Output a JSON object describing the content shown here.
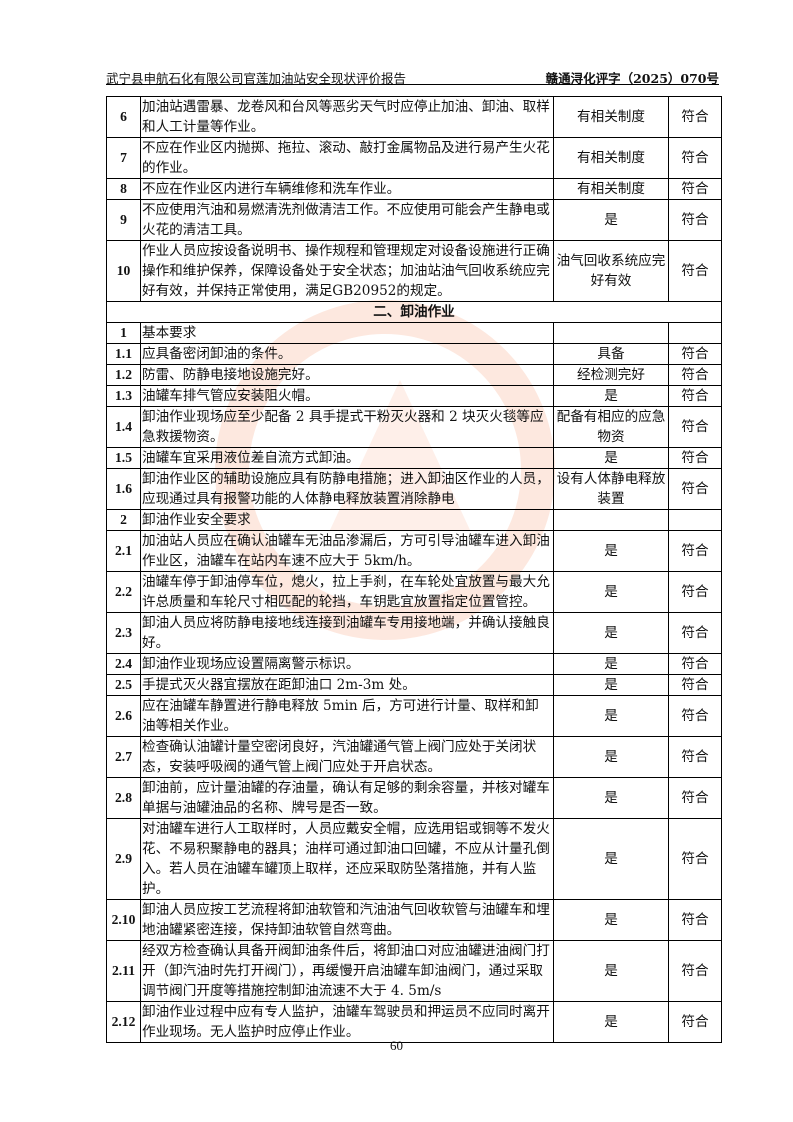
{
  "header": {
    "title": "武宁县申航石化有限公司官莲加油站安全现状评价报告",
    "doc_no": "赣通浔化评字（2025）070号"
  },
  "rows": [
    {
      "no": "6",
      "content": "加油站遇雷暴、龙卷风和台风等恶劣天气时应停止加油、卸油、取样和人工计量等作业。",
      "status": "有相关制度",
      "result": "符合"
    },
    {
      "no": "7",
      "content": "不应在作业区内抛掷、拖拉、滚动、敲打金属物品及进行易产生火花的作业。",
      "status": "有相关制度",
      "result": "符合"
    },
    {
      "no": "8",
      "content": "不应在作业区内进行车辆维修和洗车作业。",
      "status": "有相关制度",
      "result": "符合"
    },
    {
      "no": "9",
      "content": "不应使用汽油和易燃清洗剂做清洁工作。不应使用可能会产生静电或火花的清洁工具。",
      "status": "是",
      "result": "符合"
    },
    {
      "no": "10",
      "content": "作业人员应按设备说明书、操作规程和管理规定对设备设施进行正确操作和维护保养，保障设备处于安全状态；加油站油气回收系统应完好有效，并保持正常使用，满足GB20952的规定。",
      "status": "油气回收系统应完好有效",
      "result": "符合"
    }
  ],
  "section_title": "二、卸油作业",
  "rows2": [
    {
      "no": "1",
      "content": "基本要求",
      "status": "",
      "result": ""
    },
    {
      "no": "1.1",
      "content": "应具备密闭卸油的条件。",
      "status": "具备",
      "result": "符合"
    },
    {
      "no": "1.2",
      "content": "防雷、防静电接地设施完好。",
      "status": "经检测完好",
      "result": "符合"
    },
    {
      "no": "1.3",
      "content": "油罐车排气管应安装阻火帽。",
      "status": "是",
      "result": "符合"
    },
    {
      "no": "1.4",
      "content": "卸油作业现场应至少配备 2 具手提式干粉灭火器和 2 块灭火毯等应急救援物资。",
      "status": "配备有相应的应急物资",
      "result": "符合"
    },
    {
      "no": "1.5",
      "content": "油罐车宜采用液位差自流方式卸油。",
      "status": "是",
      "result": "符合"
    },
    {
      "no": "1.6",
      "content": "卸油作业区的辅助设施应具有防静电措施；进入卸油区作业的人员，应现通过具有报警功能的人体静电释放装置消除静电",
      "status": "设有人体静电释放装置",
      "result": "符合"
    },
    {
      "no": "2",
      "content": "卸油作业安全要求",
      "status": "",
      "result": ""
    },
    {
      "no": "2.1",
      "content": "加油站人员应在确认油罐车无油品渗漏后，方可引导油罐车进入卸油作业区，油罐车在站内车速不应大于 5km/h。",
      "status": "是",
      "result": "符合"
    },
    {
      "no": "2.2",
      "content": "油罐车停于卸油停车位，熄火，拉上手刹，在车轮处宜放置与最大允许总质量和车轮尺寸相匹配的轮挡，车钥匙宜放置指定位置管控。",
      "status": "是",
      "result": "符合"
    },
    {
      "no": "2.3",
      "content": "卸油人员应将防静电接地线连接到油罐车专用接地端，并确认接触良好。",
      "status": "是",
      "result": "符合"
    },
    {
      "no": "2.4",
      "content": "卸油作业现场应设置隔离警示标识。",
      "status": "是",
      "result": "符合"
    },
    {
      "no": "2.5",
      "content": "手提式灭火器宜摆放在距卸油口 2m-3m 处。",
      "status": "是",
      "result": "符合"
    },
    {
      "no": "2.6",
      "content": "应在油罐车静置进行静电释放 5min 后，方可进行计量、取样和卸油等相关作业。",
      "status": "是",
      "result": "符合"
    },
    {
      "no": "2.7",
      "content": "检查确认油罐计量空密闭良好，汽油罐通气管上阀门应处于关闭状态，安装呼吸阀的通气管上阀门应处于开启状态。",
      "status": "是",
      "result": "符合"
    },
    {
      "no": "2.8",
      "content": "卸油前，应计量油罐的存油量，确认有足够的剩余容量，并核对罐车单据与油罐油品的名称、牌号是否一致。",
      "status": "是",
      "result": "符合"
    },
    {
      "no": "2.9",
      "content": "对油罐车进行人工取样时，人员应戴安全帽，应选用铝或铜等不发火花、不易积聚静电的器具；油样可通过卸油口回罐，不应从计量孔倒入。若人员在油罐车罐顶上取样，还应采取防坠落措施，并有人监护。",
      "status": "是",
      "result": "符合"
    },
    {
      "no": "2.10",
      "content": "卸油人员应按工艺流程将卸油软管和汽油油气回收软管与油罐车和埋地油罐紧密连接，保持卸油软管自然弯曲。",
      "status": "是",
      "result": "符合"
    },
    {
      "no": "2.11",
      "content": "经双方检查确认具备开阀卸油条件后，将卸油口对应油罐进油阀门打开（卸汽油时先打开阀门），再缓慢开启油罐车卸油阀门，通过采取调节阀门开度等措施控制卸油流速不大于 4. 5m/s",
      "status": "是",
      "result": "符合"
    },
    {
      "no": "2.12",
      "content": "卸油作业过程中应有专人监护，油罐车驾驶员和押运员不应同时离开作业现场。无人监护时应停止作业。",
      "status": "是",
      "result": "符合"
    }
  ],
  "page_number": "60"
}
